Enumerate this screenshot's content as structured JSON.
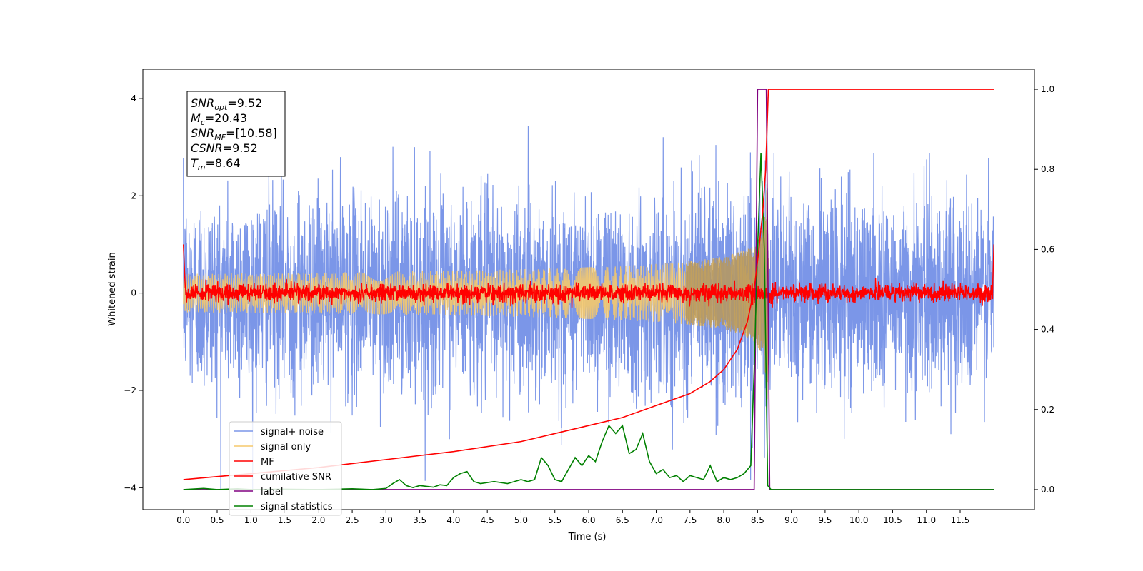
{
  "chart_data": {
    "type": "line",
    "xlabel": "Time (s)",
    "ylabel_left": "Whitened strain",
    "ylabel_right": "",
    "xlim": [
      -0.6,
      12.6
    ],
    "ylim_left": [
      -4.45,
      4.6
    ],
    "ylim_right": [
      -0.05,
      1.05
    ],
    "x_ticks": [
      "0.0",
      "0.5",
      "1.0",
      "1.5",
      "2.0",
      "2.5",
      "3.0",
      "3.5",
      "4.0",
      "4.5",
      "5.0",
      "5.5",
      "6.0",
      "6.5",
      "7.0",
      "7.5",
      "8.0",
      "8.5",
      "9.0",
      "9.5",
      "10.0",
      "10.5",
      "11.0",
      "11.5"
    ],
    "y_ticks_left": [
      -4,
      -2,
      0,
      2,
      4
    ],
    "y_ticks_right": [
      0.0,
      0.2,
      0.4,
      0.6,
      0.8,
      1.0
    ],
    "grid": false,
    "legend_position": "lower-left",
    "duration": 12.0,
    "merger_time": 8.64,
    "annotation": {
      "lines": [
        {
          "base": "SNR",
          "sub": "opt",
          "value": "=9.52"
        },
        {
          "base": "M",
          "sub": "c",
          "value": "=20.43"
        },
        {
          "base": "SNR",
          "sub": "MF",
          "value": "=[10.58]"
        },
        {
          "base": "CSNR",
          "sub": "",
          "value": "=9.52"
        },
        {
          "base": "T",
          "sub": "m",
          "value": "=8.64"
        }
      ]
    },
    "series": [
      {
        "name": "signal+ noise",
        "color": "#7b96e8",
        "axis": "left",
        "kind": "noise",
        "amplitude_sd": 1.0
      },
      {
        "name": "signal only",
        "color": "#f5c96b",
        "axis": "left",
        "kind": "chirp",
        "peak_amplitude": 2.7
      },
      {
        "name": "MF",
        "color": "#ff0000",
        "axis": "left",
        "kind": "mf_noise",
        "amplitude_sd": 0.09
      },
      {
        "name": "cumilative SNR",
        "color": "#ff0000",
        "axis": "right",
        "x": [
          0.0,
          1.0,
          2.0,
          3.0,
          4.0,
          5.0,
          5.5,
          6.0,
          6.5,
          7.0,
          7.5,
          7.8,
          8.0,
          8.2,
          8.35,
          8.45,
          8.52,
          8.58,
          8.62,
          8.66,
          12.0
        ],
        "y": [
          0.025,
          0.04,
          0.055,
          0.075,
          0.095,
          0.12,
          0.14,
          0.16,
          0.18,
          0.21,
          0.24,
          0.27,
          0.3,
          0.35,
          0.42,
          0.5,
          0.6,
          0.7,
          0.8,
          1.0,
          1.0
        ]
      },
      {
        "name": "label",
        "color": "#800080",
        "axis": "right",
        "x": [
          0.0,
          8.45,
          8.5,
          8.63,
          8.68,
          12.0
        ],
        "y": [
          0.0,
          0.0,
          1.0,
          1.0,
          0.0,
          0.0
        ]
      },
      {
        "name": "signal statistics",
        "color": "#008000",
        "axis": "right",
        "x": [
          0.0,
          0.3,
          0.5,
          0.8,
          1.0,
          1.5,
          2.0,
          2.5,
          2.8,
          3.0,
          3.1,
          3.2,
          3.3,
          3.4,
          3.5,
          3.6,
          3.7,
          3.8,
          3.9,
          4.0,
          4.1,
          4.2,
          4.3,
          4.4,
          4.6,
          4.8,
          4.9,
          5.0,
          5.1,
          5.2,
          5.3,
          5.4,
          5.5,
          5.6,
          5.7,
          5.8,
          5.9,
          6.0,
          6.1,
          6.2,
          6.3,
          6.4,
          6.5,
          6.6,
          6.7,
          6.8,
          6.9,
          7.0,
          7.1,
          7.2,
          7.3,
          7.4,
          7.5,
          7.6,
          7.7,
          7.8,
          7.9,
          8.0,
          8.1,
          8.2,
          8.3,
          8.4,
          8.45,
          8.5,
          8.55,
          8.6,
          8.65,
          8.7,
          12.0
        ],
        "y": [
          0.0,
          0.003,
          0.0,
          0.002,
          0.0,
          0.001,
          0.0,
          0.002,
          0.0,
          0.003,
          0.015,
          0.025,
          0.01,
          0.005,
          0.01,
          0.008,
          0.006,
          0.012,
          0.01,
          0.03,
          0.04,
          0.045,
          0.02,
          0.015,
          0.02,
          0.015,
          0.02,
          0.025,
          0.02,
          0.025,
          0.08,
          0.06,
          0.025,
          0.02,
          0.05,
          0.08,
          0.06,
          0.085,
          0.07,
          0.12,
          0.16,
          0.14,
          0.16,
          0.09,
          0.1,
          0.14,
          0.07,
          0.04,
          0.05,
          0.03,
          0.035,
          0.02,
          0.035,
          0.03,
          0.025,
          0.06,
          0.02,
          0.03,
          0.025,
          0.03,
          0.04,
          0.06,
          0.3,
          0.6,
          0.84,
          0.6,
          0.01,
          0.0,
          0.0
        ]
      }
    ]
  }
}
